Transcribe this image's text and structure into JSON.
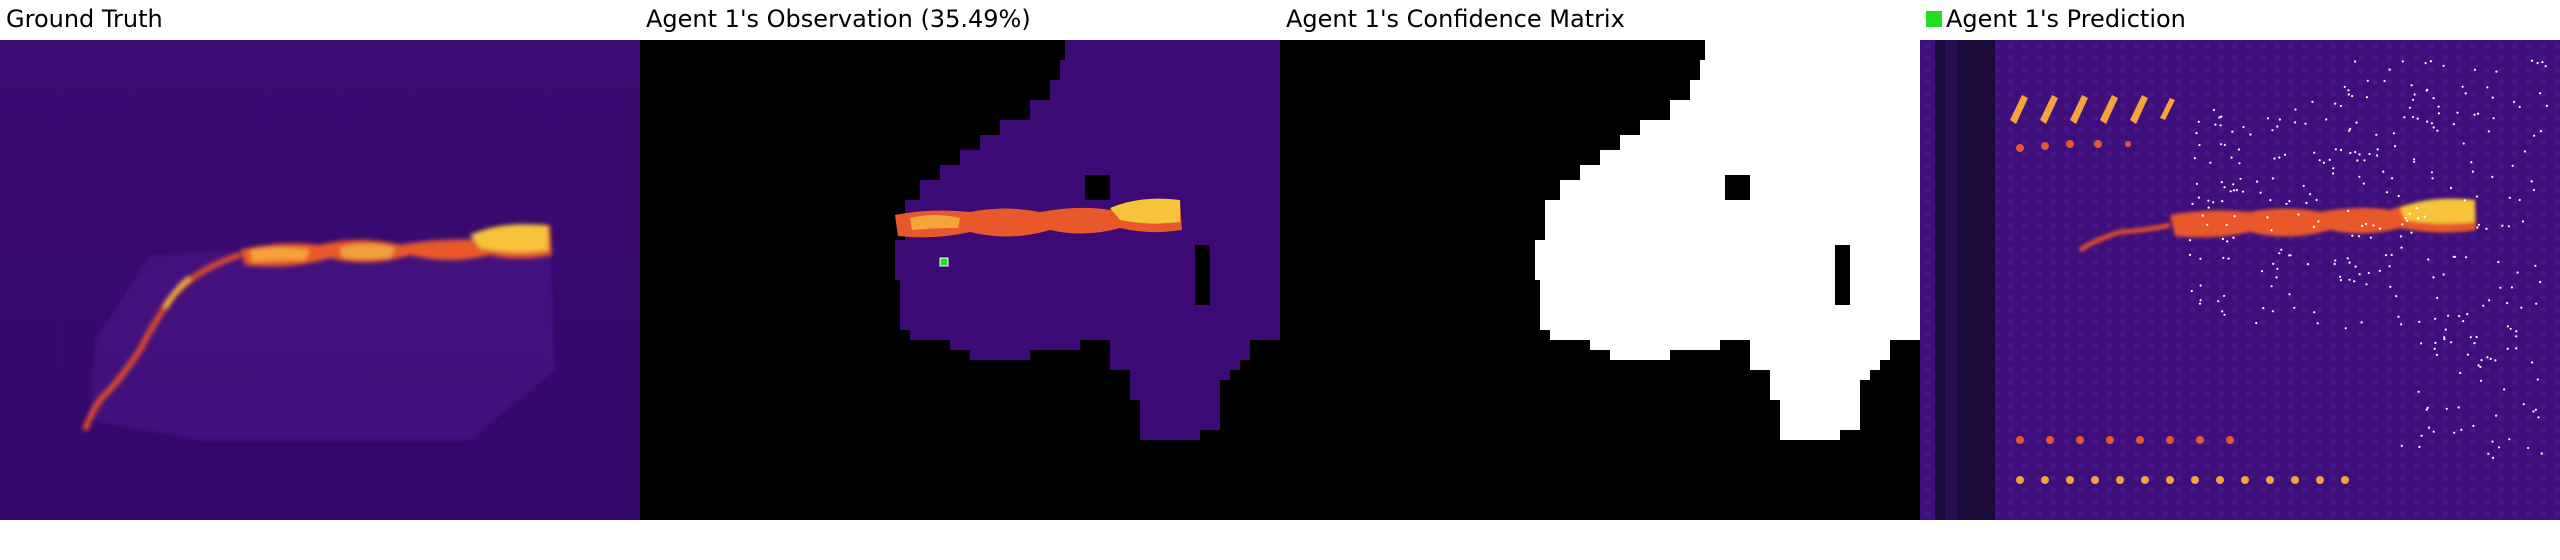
{
  "panels": [
    {
      "title": "Ground Truth"
    },
    {
      "title": "Agent 1's Observation (35.49%)"
    },
    {
      "title": "Agent 1's Confidence Matrix"
    },
    {
      "title": "Agent 1's Prediction"
    }
  ],
  "colors": {
    "background_purple": "#3b0a74",
    "hot_yellow": "#f6c33a",
    "hot_orange": "#e8582a",
    "confidence_white": "#ffffff",
    "mask_black": "#000000",
    "agent_marker": "#22dd22"
  }
}
